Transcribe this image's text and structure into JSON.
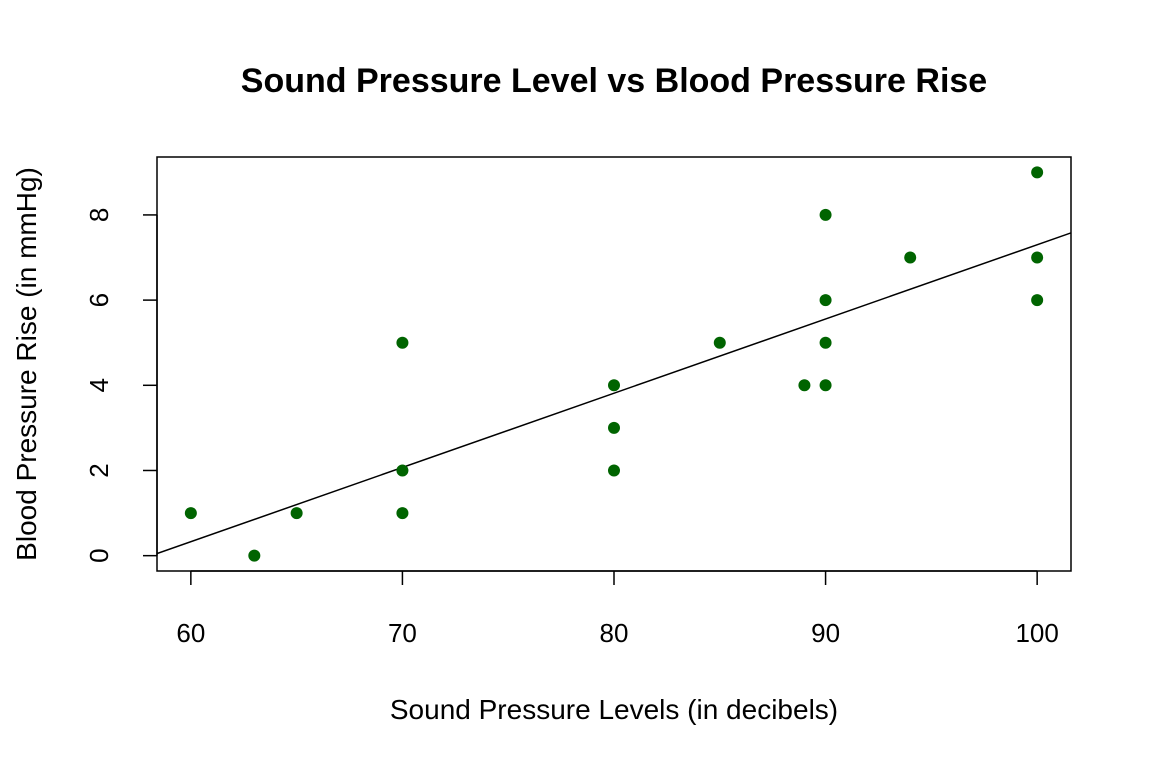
{
  "chart_data": {
    "type": "scatter",
    "title": "Sound Pressure Level vs Blood Pressure Rise",
    "xlabel": "Sound Pressure Levels (in decibels)",
    "ylabel": "Blood Pressure Rise (in mmHg)",
    "xlim": [
      58.4,
      101.6
    ],
    "ylim": [
      -0.36,
      9.36
    ],
    "x_ticks": [
      60,
      70,
      80,
      90,
      100
    ],
    "y_ticks": [
      0,
      2,
      4,
      6,
      8
    ],
    "grid": false,
    "point_color": "#006400",
    "line_color": "#000000",
    "points": [
      {
        "x": 60,
        "y": 1
      },
      {
        "x": 63,
        "y": 0
      },
      {
        "x": 65,
        "y": 1
      },
      {
        "x": 70,
        "y": 5
      },
      {
        "x": 70,
        "y": 2
      },
      {
        "x": 70,
        "y": 1
      },
      {
        "x": 80,
        "y": 4
      },
      {
        "x": 80,
        "y": 3
      },
      {
        "x": 80,
        "y": 2
      },
      {
        "x": 85,
        "y": 5
      },
      {
        "x": 89,
        "y": 4
      },
      {
        "x": 90,
        "y": 8
      },
      {
        "x": 90,
        "y": 6
      },
      {
        "x": 90,
        "y": 5
      },
      {
        "x": 90,
        "y": 4
      },
      {
        "x": 94,
        "y": 7
      },
      {
        "x": 100,
        "y": 9
      },
      {
        "x": 100,
        "y": 7
      },
      {
        "x": 100,
        "y": 6
      }
    ],
    "regression_line": {
      "intercept": -10.13,
      "slope": 0.1743
    }
  }
}
